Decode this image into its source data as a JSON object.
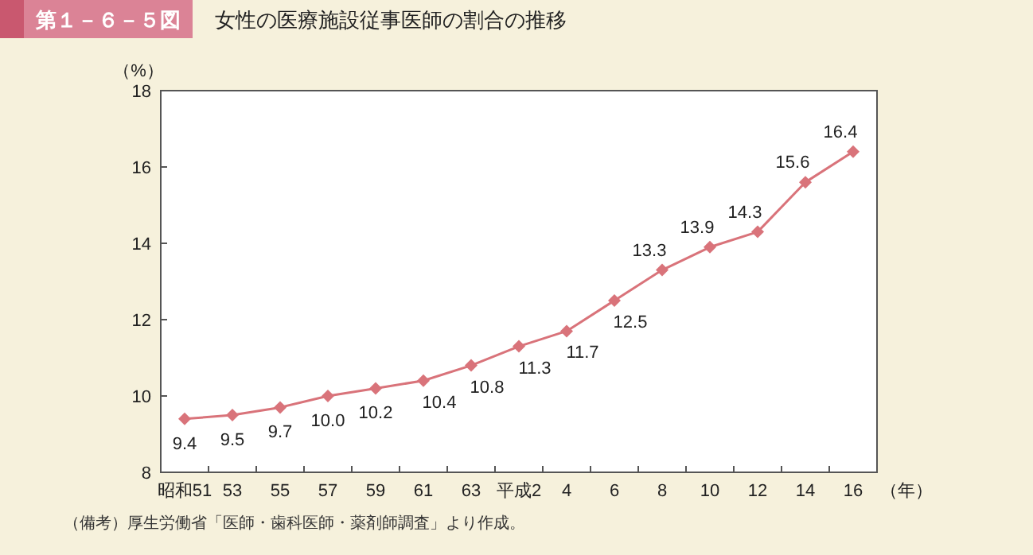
{
  "chart_data": {
    "type": "line",
    "title": "第１－６－５図",
    "subtitle": "女性の医療施設従事医師の割合の推移",
    "ylabel": "（%）",
    "xlabel": "（年）",
    "annotations": [
      "（備考）厚生労働省「医師・歯科医師・薬剤師調査」より作成。"
    ],
    "categories": [
      "昭和51",
      "53",
      "55",
      "57",
      "59",
      "61",
      "63",
      "平成2",
      "4",
      "6",
      "8",
      "10",
      "12",
      "14",
      "16"
    ],
    "series": [
      {
        "color": "#d9737a",
        "values": [
          9.4,
          9.5,
          9.7,
          10.0,
          10.2,
          10.4,
          10.8,
          11.3,
          11.7,
          12.5,
          13.3,
          13.9,
          14.3,
          15.6,
          16.4
        ],
        "value_labels": [
          "9.4",
          "9.5",
          "9.7",
          "10.0",
          "10.2",
          "10.4",
          "10.8",
          "11.3",
          "11.7",
          "12.5",
          "13.3",
          "13.9",
          "14.3",
          "15.6",
          "16.4"
        ]
      }
    ],
    "ylim": [
      8,
      18
    ],
    "yticks": [
      8,
      10,
      12,
      14,
      16,
      18
    ],
    "grid": false,
    "marker": "diamond",
    "line_style": "solid"
  }
}
